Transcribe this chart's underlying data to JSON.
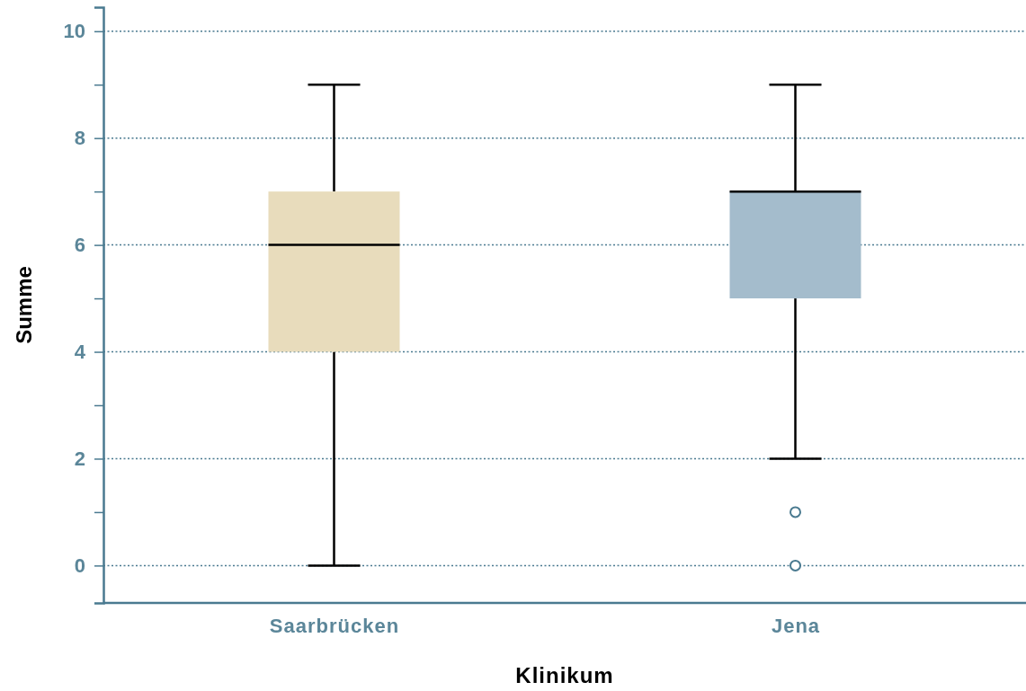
{
  "chart_data": {
    "type": "box",
    "xlabel": "Klinikum",
    "ylabel": "Summe",
    "categories": [
      "Saarbrücken",
      "Jena"
    ],
    "colors": [
      "#e8dcbc",
      "#a4bccc"
    ],
    "boxes": [
      {
        "low": 0,
        "q1": 4,
        "median": 6,
        "q3": 7,
        "high": 9
      },
      {
        "low": 2,
        "q1": 5,
        "median": 7,
        "q3": 7,
        "high": 9,
        "outliers": [
          1,
          0
        ]
      }
    ],
    "ylim": [
      -0.7,
      10.45
    ],
    "yticks": [
      0,
      {
        "value": 1,
        "label": null
      },
      2,
      {
        "value": 3,
        "label": null
      },
      4,
      {
        "value": 5,
        "label": null
      },
      6,
      {
        "value": 7,
        "label": null
      },
      8,
      {
        "value": 9,
        "label": null
      },
      10
    ],
    "grid": "y"
  }
}
